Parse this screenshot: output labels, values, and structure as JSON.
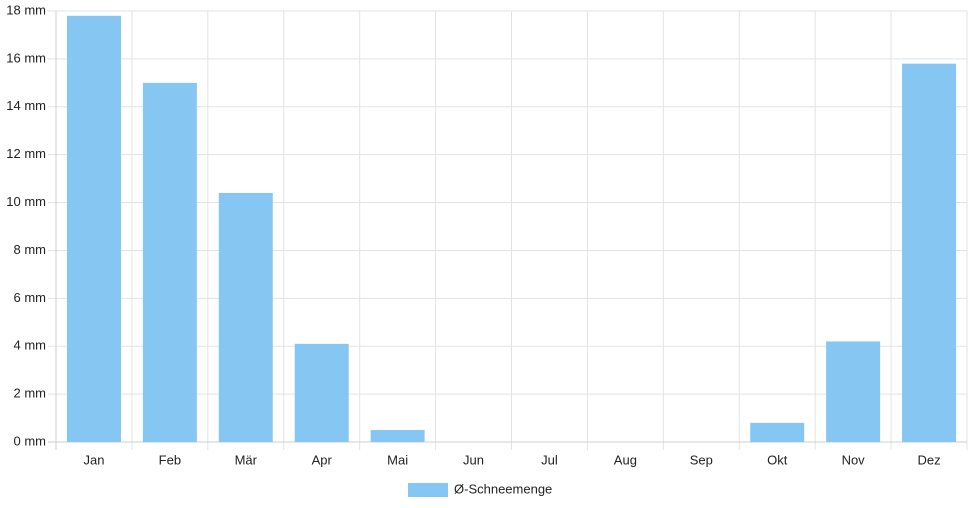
{
  "chart_data": {
    "type": "bar",
    "categories": [
      "Jan",
      "Feb",
      "Mär",
      "Apr",
      "Mai",
      "Jun",
      "Jul",
      "Aug",
      "Sep",
      "Okt",
      "Nov",
      "Dez"
    ],
    "series": [
      {
        "name": "Ø-Schneemenge",
        "color": "#86c6f2",
        "values": [
          17.8,
          15.0,
          10.4,
          4.1,
          0.5,
          0,
          0,
          0,
          0,
          0.8,
          4.2,
          15.8
        ]
      }
    ],
    "ylim": [
      0,
      18
    ],
    "yticks": [
      {
        "value": 0,
        "label": "0 mm"
      },
      {
        "value": 2,
        "label": "2 mm"
      },
      {
        "value": 4,
        "label": "4 mm"
      },
      {
        "value": 6,
        "label": "6 mm"
      },
      {
        "value": 8,
        "label": "8 mm"
      },
      {
        "value": 10,
        "label": "10 mm"
      },
      {
        "value": 12,
        "label": "12 mm"
      },
      {
        "value": 14,
        "label": "14 mm"
      },
      {
        "value": 16,
        "label": "16 mm"
      },
      {
        "value": 18,
        "label": "18 mm"
      }
    ],
    "grid": true,
    "legend": "bottom"
  }
}
